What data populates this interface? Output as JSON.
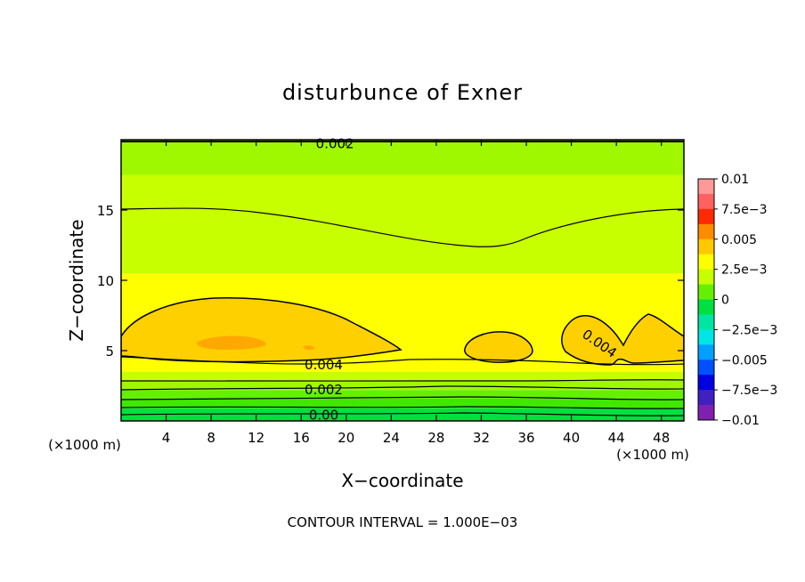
{
  "chart_data": {
    "type": "contour",
    "title": "disturbunce of Exner",
    "xlabel": "X−coordinate",
    "ylabel": "Z−coordinate",
    "x_unit": "(×1000 m)",
    "y_unit": "(×1000 m)",
    "xlim": [
      0,
      50
    ],
    "ylim": [
      0,
      20
    ],
    "x_ticks": [
      4,
      8,
      12,
      16,
      20,
      24,
      28,
      32,
      36,
      40,
      44,
      48
    ],
    "y_ticks": [
      5,
      10,
      15
    ],
    "footer": "CONTOUR INTERVAL = 1.000E−03",
    "contour_interval": 0.001,
    "contour_labels": [
      {
        "text": "0.002",
        "x": 19,
        "z": 19.7
      },
      {
        "text": "0.004",
        "x": 18,
        "z": 4.0
      },
      {
        "text": "0.002",
        "x": 18,
        "z": 2.2
      },
      {
        "text": "0.00",
        "x": 18,
        "z": 0.4
      },
      {
        "text": "0.004",
        "x": 42.5,
        "z": 5.5
      }
    ],
    "colorbar": {
      "labels": [
        "0.01",
        "7.5e−3",
        "0.005",
        "2.5e−3",
        "0",
        "−2.5e−3",
        "−0.005",
        "−7.5e−3",
        "−0.01"
      ],
      "colors": [
        "#ff9999",
        "#ff6060",
        "#ff2a00",
        "#ff8c00",
        "#ffc800",
        "#ffff00",
        "#c8ff00",
        "#64f000",
        "#00e040",
        "#00e6a0",
        "#00e6e6",
        "#00a0ff",
        "#0050ff",
        "#0000e0",
        "#4020c0",
        "#8020b0"
      ]
    },
    "field_bands": [
      {
        "z_min": 0.0,
        "z_max": 0.9,
        "color": "#00e040"
      },
      {
        "z_min": 0.9,
        "z_max": 1.6,
        "color": "#40e800"
      },
      {
        "z_min": 1.6,
        "z_max": 2.2,
        "color": "#64f000"
      },
      {
        "z_min": 2.2,
        "z_max": 2.9,
        "color": "#a0f800"
      },
      {
        "z_min": 2.9,
        "z_max": 3.5,
        "color": "#c8ff00"
      },
      {
        "z_min": 3.5,
        "z_max": 10.5,
        "color": "#ffff00"
      },
      {
        "z_min": 10.5,
        "z_max": 17.5,
        "color": "#c8ff00"
      },
      {
        "z_min": 17.5,
        "z_max": 20.0,
        "color": "#a0f800"
      }
    ]
  }
}
